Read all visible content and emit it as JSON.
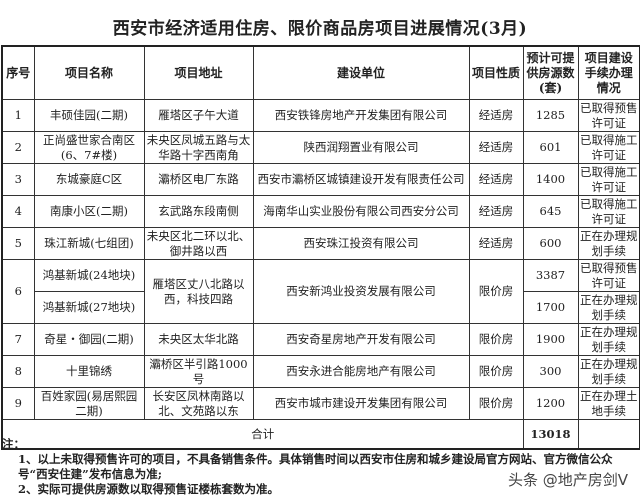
{
  "title": "西安市经济适用住房、限价商品房项目进展情况(3月)",
  "headers": [
    "序号",
    "项目名称",
    "项目地址",
    "建设单位",
    "项目性质",
    "预计可提供房源数(套)",
    "项目建设手续办理情况"
  ],
  "rows": [
    {
      "no": "1",
      "name": "丰硕佳园(二期)",
      "addr": "雁塔区子午大道",
      "unit": "西安铁锋房地产开发集团有限公司",
      "type": "经适房",
      "count": "1285",
      "status": "已取得预售许可证"
    },
    {
      "no": "2",
      "name": "正尚盛世家合南区(6、7#楼)",
      "addr": "未央区凤城五路与太华路十字西南角",
      "unit": "陕西润翔置业有限公司",
      "type": "经适房",
      "count": "601",
      "status": "已取得施工许可证"
    },
    {
      "no": "3",
      "name": "东城豪庭C区",
      "addr": "灞桥区电厂东路",
      "unit": "西安市灞桥区城镇建设开发有限责任公司",
      "type": "经适房",
      "count": "1400",
      "status": "已取得施工许可证"
    },
    {
      "no": "4",
      "name": "南康小区(二期)",
      "addr": "玄武路东段南侧",
      "unit": "海南华山实业股份有限公司西安分公司",
      "type": "经适房",
      "count": "645",
      "status": "已取得施工许可证"
    },
    {
      "no": "5",
      "name": "珠江新城(七组团)",
      "addr": "未央区北二环以北、御井路以西",
      "unit": "西安珠江投资有限公司",
      "type": "经适房",
      "count": "600",
      "status": "正在办理规划手续"
    },
    {
      "no": "6",
      "name": "鸿基新城(24地块)",
      "addr": "雁塔区丈八北路以西，科技四路",
      "unit": "西安新鸿业投资发展有限公司",
      "type": "限价房",
      "count": "3387",
      "status": "已取得预售许可证",
      "name2": "鸿基新城(27地块)",
      "count2": "1700",
      "status2": "正在办理规划手续"
    },
    {
      "no": "7",
      "name": "奇星・御园(二期)",
      "addr": "未央区太华北路",
      "unit": "西安奇星房地产开发有限公司",
      "type": "限价房",
      "count": "1900",
      "status": "正在办理规划手续"
    },
    {
      "no": "8",
      "name": "十里锦绣",
      "addr": "灞桥区半引路1000号",
      "unit": "西安永进合能房地产有限公司",
      "type": "限价房",
      "count": "300",
      "status": "正在办理规划手续"
    },
    {
      "no": "9",
      "name": "百姓家园(易居熙园二期)",
      "addr": "长安区凤林南路以北、文苑路以东",
      "unit": "西安市城市建设开发集团有限公司",
      "type": "限价房",
      "count": "1200",
      "status": "正在办理土地手续"
    }
  ],
  "total": {
    "label": "合计",
    "count": "13018"
  },
  "notes": {
    "heading": "注：",
    "line1": "1、以上未取得预售许可的项目，不具备销售条件。具体销售时间以西安市住房和城乡建设局官方网站、官方微信公众号“西安住建”发布信息为准;",
    "line2": "2、实际可提供房源数以取得预售证楼栋套数为准。"
  },
  "watermark": "头条 @地产房剑V"
}
